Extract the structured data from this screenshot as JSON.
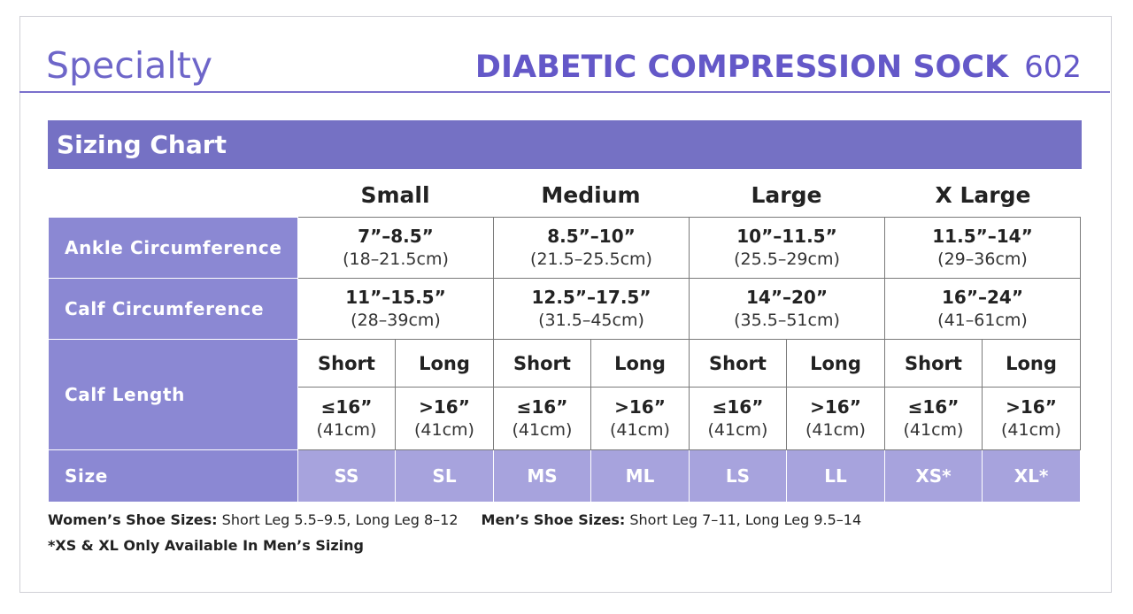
{
  "header": {
    "category": "Specialty",
    "product_name": "DIABETIC COMPRESSION SOCK",
    "product_number": "602"
  },
  "title": "Sizing Chart",
  "columns": [
    "Small",
    "Medium",
    "Large",
    "X Large"
  ],
  "rows": {
    "ankle": {
      "label": "Ankle Circumference",
      "values": [
        {
          "in": "7”–8.5”",
          "cm": "(18–21.5cm)"
        },
        {
          "in": "8.5”–10”",
          "cm": "(21.5–25.5cm)"
        },
        {
          "in": "10”–11.5”",
          "cm": "(25.5–29cm)"
        },
        {
          "in": "11.5”–14”",
          "cm": "(29–36cm)"
        }
      ]
    },
    "calf": {
      "label": "Calf Circumference",
      "values": [
        {
          "in": "11”–15.5”",
          "cm": "(28–39cm)"
        },
        {
          "in": "12.5”–17.5”",
          "cm": "(31.5–45cm)"
        },
        {
          "in": "14”–20”",
          "cm": "(35.5–51cm)"
        },
        {
          "in": "16”–24”",
          "cm": "(41–61cm)"
        }
      ]
    },
    "length": {
      "label": "Calf Length",
      "sub_headers": [
        "Short",
        "Long",
        "Short",
        "Long",
        "Short",
        "Long",
        "Short",
        "Long"
      ],
      "values": [
        {
          "in": "≤16”",
          "cm": "(41cm)"
        },
        {
          "in": ">16”",
          "cm": "(41cm)"
        },
        {
          "in": "≤16”",
          "cm": "(41cm)"
        },
        {
          "in": ">16”",
          "cm": "(41cm)"
        },
        {
          "in": "≤16”",
          "cm": "(41cm)"
        },
        {
          "in": ">16”",
          "cm": "(41cm)"
        },
        {
          "in": "≤16”",
          "cm": "(41cm)"
        },
        {
          "in": ">16”",
          "cm": "(41cm)"
        }
      ]
    },
    "size": {
      "label": "Size",
      "codes": [
        "SS",
        "SL",
        "MS",
        "ML",
        "LS",
        "LL",
        "XS*",
        "XL*"
      ]
    }
  },
  "notes": {
    "women_label": "Women’s Shoe Sizes:",
    "women_text": " Short Leg 5.5–9.5, Long Leg 8–12",
    "men_label": "Men’s Shoe Sizes:",
    "men_text": " Short Leg 7–11, Long Leg 9.5–14",
    "footnote": "*XS & XL Only Available In Men’s Sizing"
  },
  "colors": {
    "brand_purple": "#6458c8",
    "title_band": "#7571c4",
    "row_header": "#8b88d3",
    "size_row": "#a7a3dd"
  }
}
